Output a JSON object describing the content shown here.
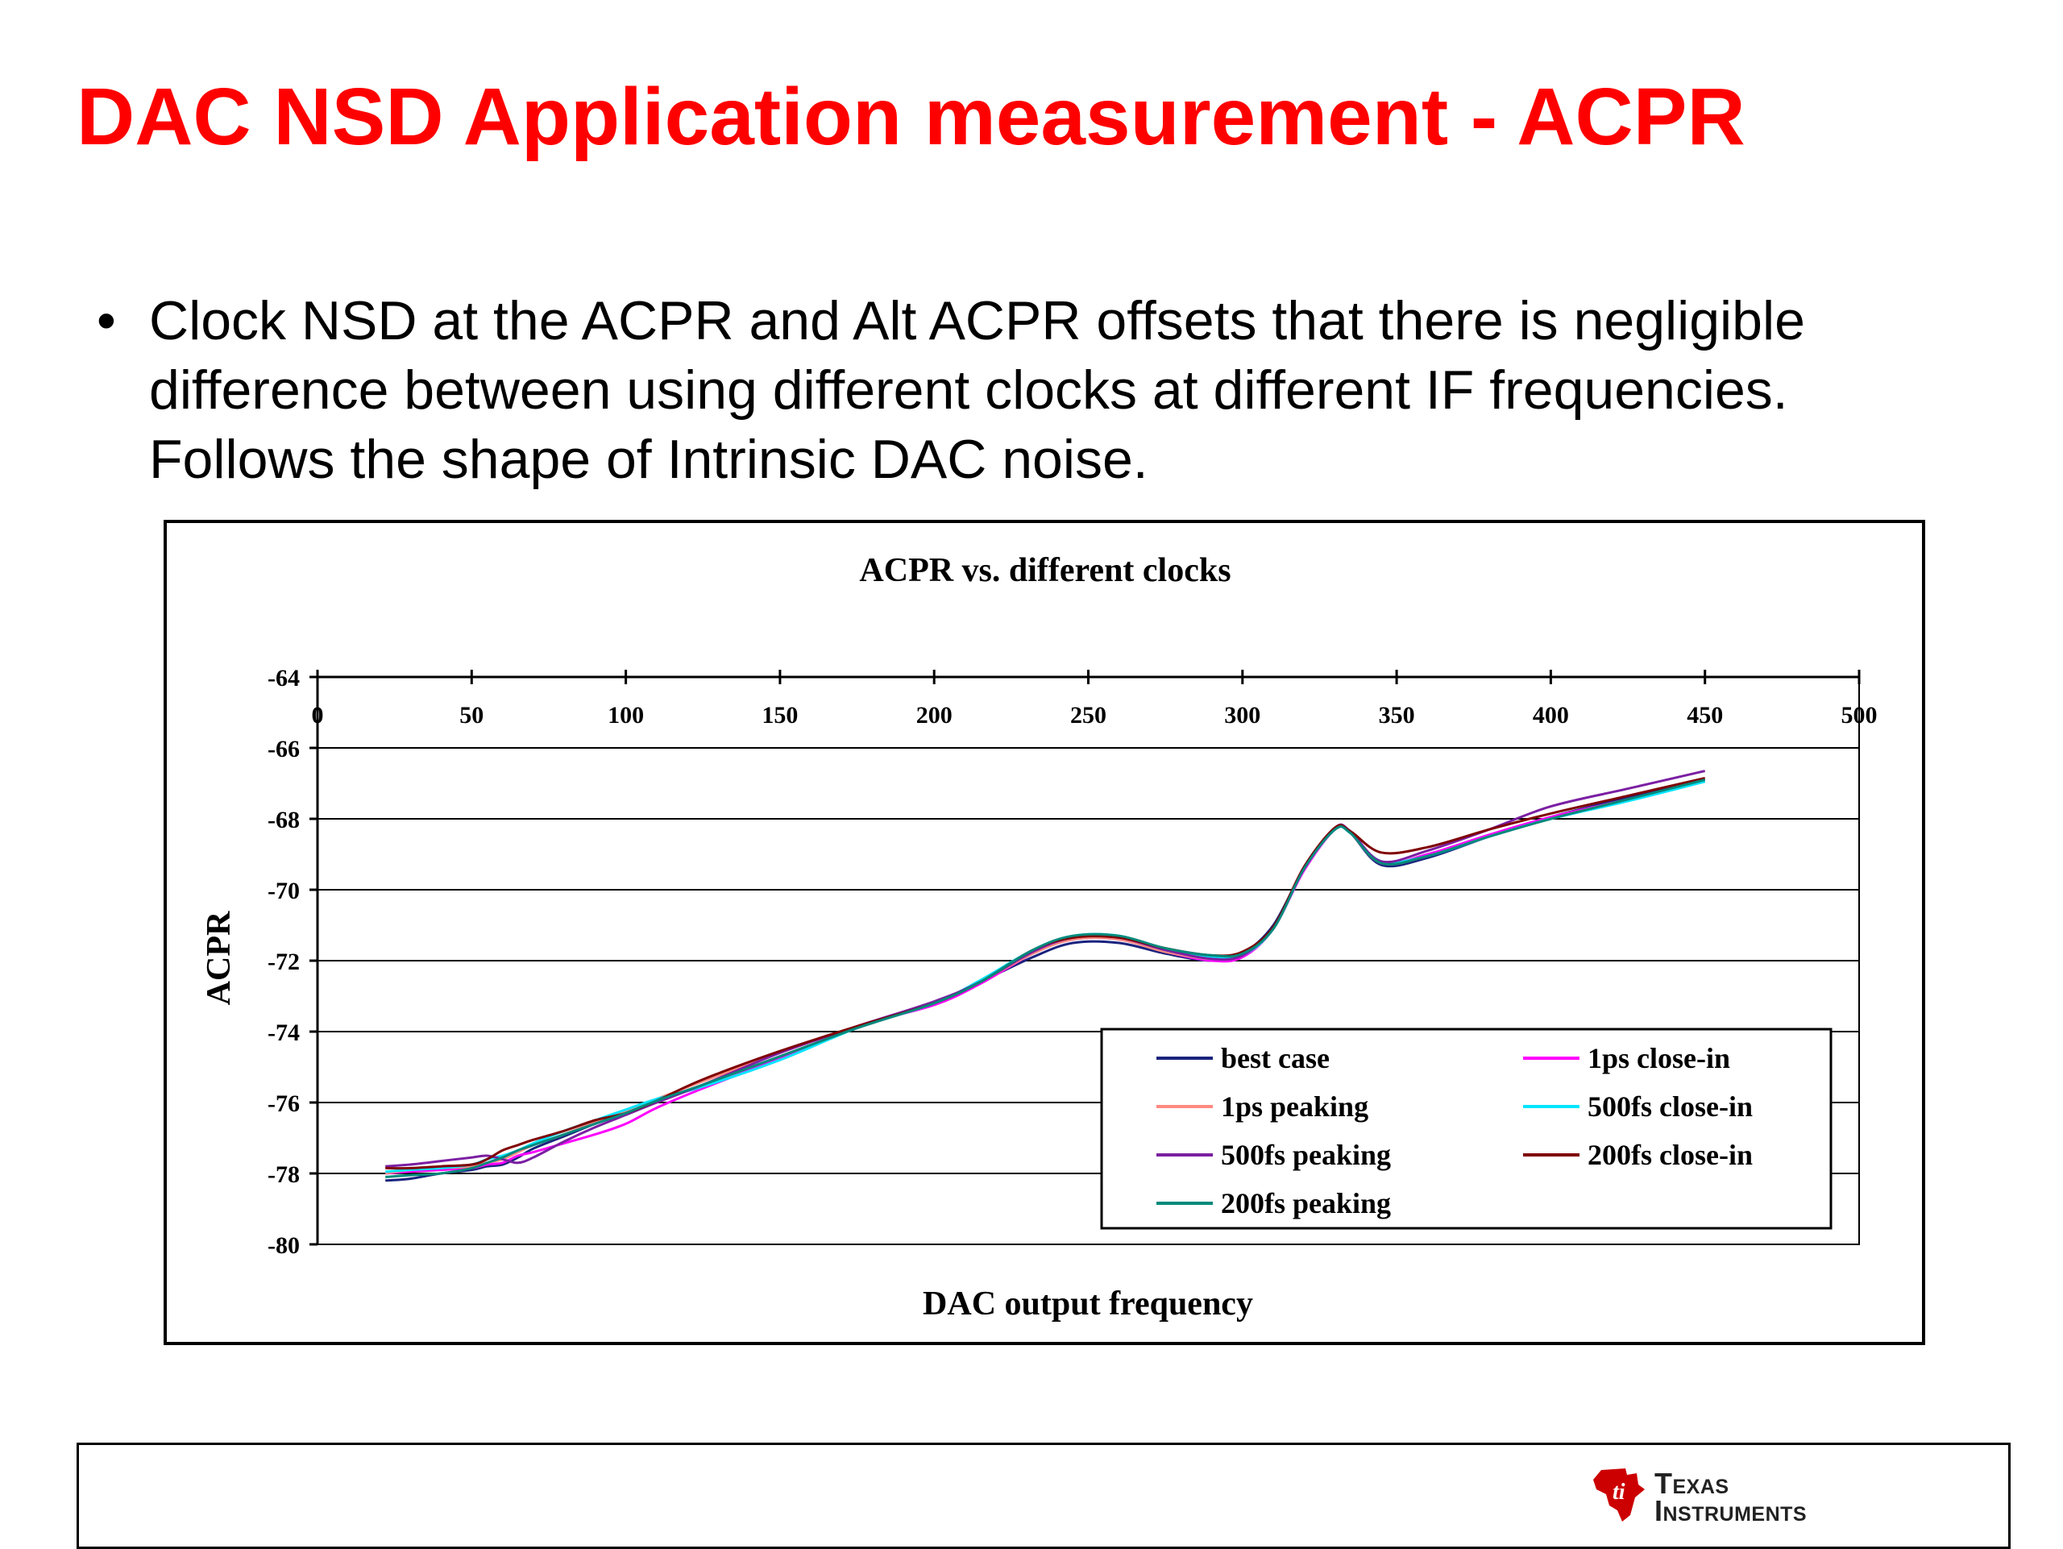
{
  "slide": {
    "title": "DAC NSD Application measurement - ACPR",
    "bullets": [
      "Clock NSD at the ACPR and Alt ACPR offsets that there is negligible difference between using different clocks at different IF frequencies. Follows the shape of Intrinsic DAC noise."
    ],
    "bullet_glyph": "•"
  },
  "footer": {
    "logo": {
      "icon": "ti-emblem-icon",
      "line1": "Texas",
      "line2": "Instruments",
      "color": "#cc0000"
    }
  },
  "chart_data": {
    "type": "line",
    "title": "ACPR vs. different clocks",
    "xlabel": "DAC output frequency",
    "ylabel": "ACPR",
    "xlim": [
      0,
      500
    ],
    "ylim": [
      -80,
      -64
    ],
    "xticks": [
      0,
      50,
      100,
      150,
      200,
      250,
      300,
      350,
      400,
      450,
      500
    ],
    "yticks": [
      -64,
      -66,
      -68,
      -70,
      -72,
      -74,
      -76,
      -78,
      -80
    ],
    "x_axis_position": "top",
    "grid": "horizontal major",
    "legend": {
      "placement": "bottom-right",
      "columns": 2
    },
    "series": [
      {
        "name": "best case",
        "color": "#1a237e",
        "x": [
          22,
          30,
          40,
          50,
          55,
          60,
          65,
          70,
          80,
          90,
          100,
          110,
          125,
          150,
          175,
          200,
          215,
          232,
          245,
          260,
          275,
          290,
          300,
          310,
          320,
          330,
          335,
          345,
          360,
          380,
          400,
          425,
          450
        ],
        "y": [
          -78.2,
          -78.15,
          -78.0,
          -77.9,
          -77.8,
          -77.75,
          -77.55,
          -77.3,
          -76.95,
          -76.6,
          -76.3,
          -75.95,
          -75.5,
          -74.7,
          -73.9,
          -73.2,
          -72.6,
          -71.9,
          -71.5,
          -71.5,
          -71.8,
          -72.0,
          -71.8,
          -71.0,
          -69.4,
          -68.3,
          -68.4,
          -69.3,
          -69.1,
          -68.5,
          -67.95,
          -67.4,
          -66.9
        ]
      },
      {
        "name": "1ps close-in",
        "color": "#ff00ff",
        "x": [
          22,
          30,
          40,
          50,
          55,
          60,
          65,
          70,
          80,
          90,
          100,
          110,
          125,
          150,
          175,
          200,
          215,
          232,
          245,
          260,
          275,
          290,
          300,
          310,
          320,
          330,
          335,
          345,
          360,
          380,
          400,
          425,
          450
        ],
        "y": [
          -78.0,
          -77.95,
          -77.9,
          -77.85,
          -77.75,
          -77.7,
          -77.5,
          -77.4,
          -77.15,
          -76.9,
          -76.6,
          -76.15,
          -75.6,
          -74.75,
          -73.85,
          -73.25,
          -72.65,
          -71.8,
          -71.4,
          -71.4,
          -71.75,
          -72.0,
          -71.9,
          -71.1,
          -69.45,
          -68.3,
          -68.4,
          -69.25,
          -69.0,
          -68.45,
          -67.95,
          -67.45,
          -66.9
        ]
      },
      {
        "name": "1ps peaking",
        "color": "#ff8a80",
        "x": [
          22,
          30,
          40,
          50,
          55,
          60,
          65,
          70,
          80,
          90,
          100,
          110,
          125,
          150,
          175,
          200,
          215,
          232,
          245,
          260,
          275,
          290,
          300,
          310,
          320,
          330,
          335,
          345,
          360,
          380,
          400,
          425,
          450
        ],
        "y": [
          -78.0,
          -77.9,
          -77.85,
          -77.8,
          -77.7,
          -77.6,
          -77.4,
          -77.2,
          -76.9,
          -76.55,
          -76.25,
          -75.9,
          -75.4,
          -74.6,
          -73.85,
          -73.2,
          -72.6,
          -71.8,
          -71.4,
          -71.4,
          -71.75,
          -71.95,
          -71.85,
          -71.1,
          -69.4,
          -68.3,
          -68.4,
          -69.25,
          -69.05,
          -68.5,
          -68.0,
          -67.45,
          -66.95
        ]
      },
      {
        "name": "500fs close-in",
        "color": "#00e5ff",
        "x": [
          22,
          30,
          40,
          50,
          55,
          60,
          65,
          70,
          80,
          90,
          100,
          110,
          125,
          150,
          175,
          200,
          215,
          232,
          245,
          260,
          275,
          290,
          300,
          310,
          320,
          330,
          335,
          345,
          360,
          380,
          400,
          425,
          450
        ],
        "y": [
          -77.95,
          -77.9,
          -77.85,
          -77.75,
          -77.6,
          -77.5,
          -77.35,
          -77.15,
          -76.8,
          -76.5,
          -76.2,
          -75.9,
          -75.55,
          -74.8,
          -73.9,
          -73.2,
          -72.55,
          -71.7,
          -71.3,
          -71.3,
          -71.7,
          -71.9,
          -71.85,
          -71.1,
          -69.4,
          -68.3,
          -68.4,
          -69.2,
          -69.05,
          -68.5,
          -68.0,
          -67.5,
          -66.95
        ]
      },
      {
        "name": "500fs peaking",
        "color": "#7b1fa2",
        "x": [
          22,
          30,
          40,
          50,
          55,
          60,
          65,
          70,
          80,
          90,
          100,
          110,
          125,
          150,
          175,
          200,
          215,
          232,
          245,
          260,
          275,
          290,
          300,
          310,
          320,
          330,
          335,
          345,
          360,
          380,
          400,
          425,
          450
        ],
        "y": [
          -77.8,
          -77.75,
          -77.65,
          -77.55,
          -77.5,
          -77.6,
          -77.7,
          -77.55,
          -77.1,
          -76.7,
          -76.35,
          -76.0,
          -75.5,
          -74.6,
          -73.85,
          -73.15,
          -72.6,
          -71.75,
          -71.35,
          -71.35,
          -71.7,
          -71.95,
          -71.85,
          -71.05,
          -69.4,
          -68.25,
          -68.35,
          -69.2,
          -68.9,
          -68.3,
          -67.65,
          -67.15,
          -66.65
        ]
      },
      {
        "name": "200fs close-in",
        "color": "#7f0000",
        "x": [
          22,
          30,
          40,
          50,
          55,
          60,
          65,
          70,
          80,
          90,
          100,
          110,
          125,
          150,
          175,
          200,
          215,
          232,
          245,
          260,
          275,
          290,
          300,
          310,
          320,
          330,
          335,
          345,
          360,
          380,
          400,
          425,
          450
        ],
        "y": [
          -77.85,
          -77.85,
          -77.8,
          -77.75,
          -77.6,
          -77.35,
          -77.2,
          -77.05,
          -76.8,
          -76.5,
          -76.3,
          -75.95,
          -75.35,
          -74.55,
          -73.85,
          -73.2,
          -72.6,
          -71.7,
          -71.35,
          -71.35,
          -71.65,
          -71.85,
          -71.75,
          -71.05,
          -69.35,
          -68.25,
          -68.35,
          -68.95,
          -68.8,
          -68.3,
          -67.85,
          -67.35,
          -66.85
        ]
      },
      {
        "name": "200fs peaking",
        "color": "#00897b",
        "x": [
          22,
          30,
          40,
          50,
          55,
          60,
          65,
          70,
          80,
          90,
          100,
          110,
          125,
          150,
          175,
          200,
          215,
          232,
          245,
          260,
          275,
          290,
          300,
          310,
          320,
          330,
          335,
          345,
          360,
          380,
          400,
          425,
          450
        ],
        "y": [
          -78.1,
          -78.05,
          -78.0,
          -77.85,
          -77.7,
          -77.55,
          -77.35,
          -77.2,
          -76.9,
          -76.6,
          -76.3,
          -75.95,
          -75.5,
          -74.7,
          -73.9,
          -73.2,
          -72.6,
          -71.7,
          -71.3,
          -71.3,
          -71.65,
          -71.85,
          -71.8,
          -71.1,
          -69.4,
          -68.3,
          -68.4,
          -69.25,
          -69.05,
          -68.5,
          -68.0,
          -67.45,
          -66.9
        ]
      }
    ]
  }
}
